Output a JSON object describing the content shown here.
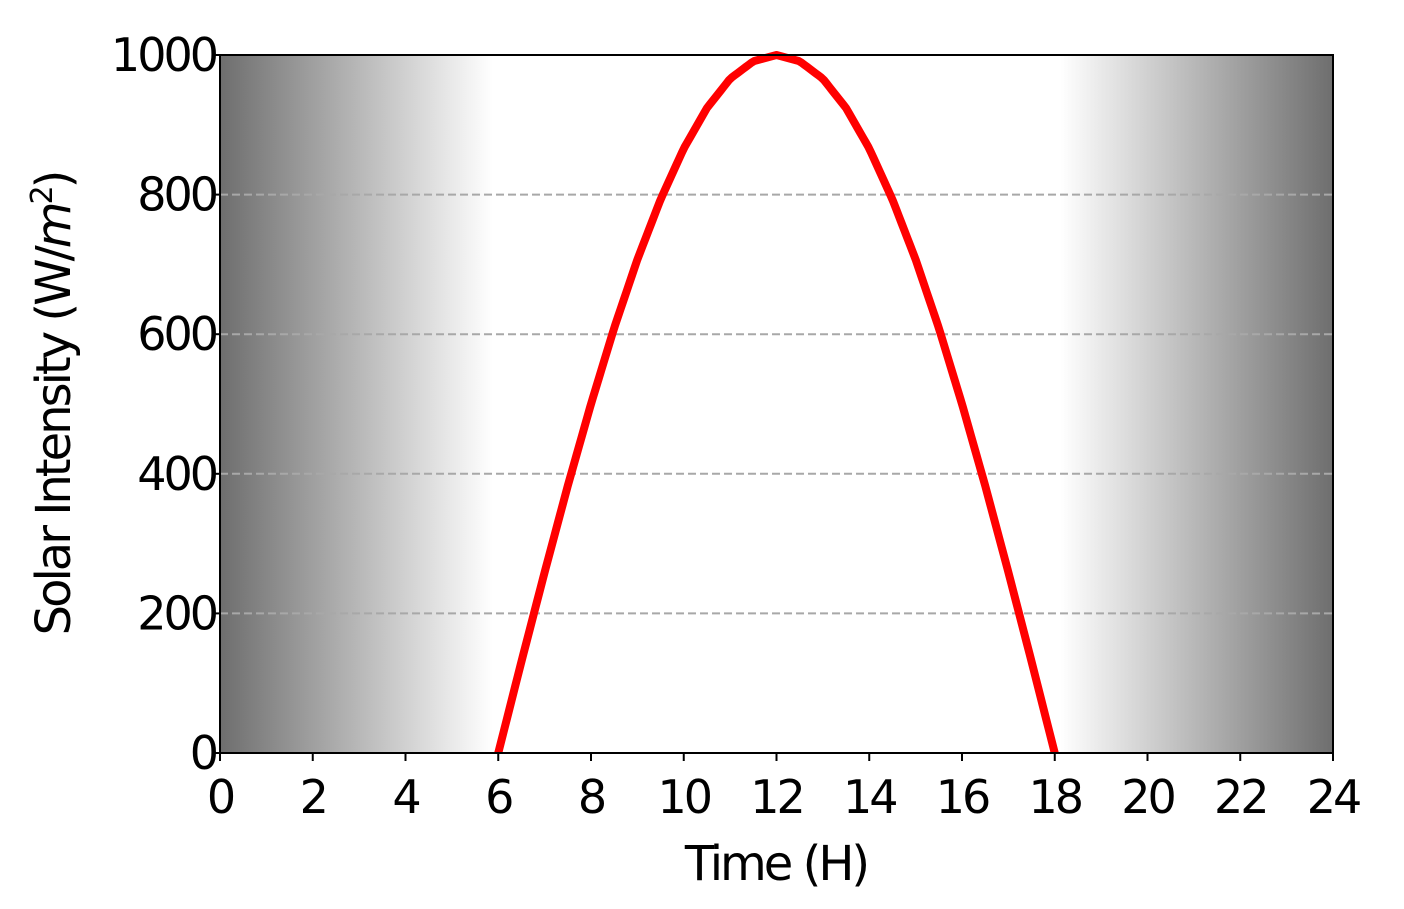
{
  "chart_data": {
    "type": "line",
    "xlabel": "Time (H)",
    "ylabel": {
      "prefix": "Solar Intensity (W/",
      "unit_var": "m",
      "unit_exp": "2",
      "suffix": ")"
    },
    "xlim": [
      0,
      24
    ],
    "ylim": [
      0,
      1000
    ],
    "x_ticks": [
      "0",
      "2",
      "4",
      "6",
      "8",
      "10",
      "12",
      "14",
      "16",
      "18",
      "20",
      "22",
      "24"
    ],
    "y_ticks": [
      "0",
      "200",
      "400",
      "600",
      "800",
      "1000"
    ],
    "grid": "horizontal dashed",
    "background": "dark gray at night fading to white during daylight (about 6 to 18 h)",
    "series": [
      {
        "color": "#ff0000",
        "x": [
          6,
          6.5,
          7,
          7.5,
          8,
          8.5,
          9,
          9.5,
          10,
          10.5,
          11,
          11.5,
          12,
          12.5,
          13,
          13.5,
          14,
          14.5,
          15,
          15.5,
          16,
          16.5,
          17,
          17.5,
          18
        ],
        "y": [
          0,
          131,
          259,
          383,
          500,
          609,
          707,
          793,
          866,
          924,
          966,
          991,
          1000,
          991,
          966,
          924,
          866,
          793,
          707,
          609,
          500,
          383,
          259,
          131,
          0
        ]
      }
    ]
  }
}
